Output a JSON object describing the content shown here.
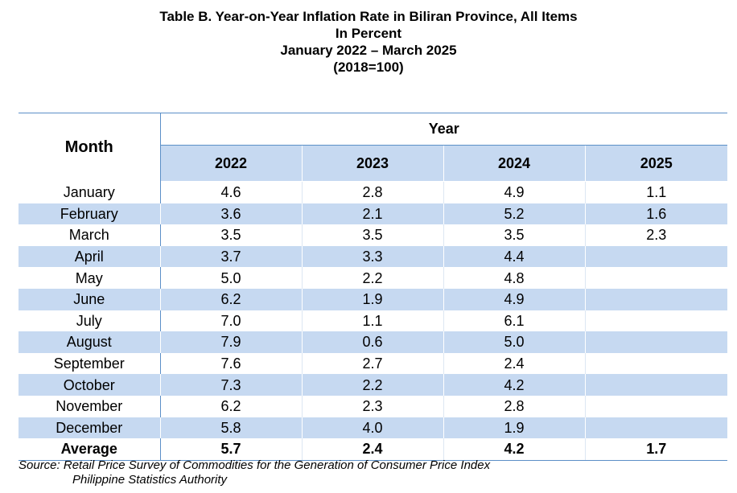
{
  "title": {
    "line1": "Table B. Year-on-Year Inflation Rate in Biliran Province, All Items",
    "line2": "In Percent",
    "line3": "January 2022 – March 2025",
    "line4": "(2018=100)"
  },
  "table": {
    "month_header": "Month",
    "year_header": "Year",
    "years": [
      "2022",
      "2023",
      "2024",
      "2025"
    ],
    "rows": [
      {
        "month": "January",
        "values": [
          "4.6",
          "2.8",
          "4.9",
          "1.1"
        ]
      },
      {
        "month": "February",
        "values": [
          "3.6",
          "2.1",
          "5.2",
          "1.6"
        ]
      },
      {
        "month": "March",
        "values": [
          "3.5",
          "3.5",
          "3.5",
          "2.3"
        ]
      },
      {
        "month": "April",
        "values": [
          "3.7",
          "3.3",
          "4.4",
          ""
        ]
      },
      {
        "month": "May",
        "values": [
          "5.0",
          "2.2",
          "4.8",
          ""
        ]
      },
      {
        "month": "June",
        "values": [
          "6.2",
          "1.9",
          "4.9",
          ""
        ]
      },
      {
        "month": "July",
        "values": [
          "7.0",
          "1.1",
          "6.1",
          ""
        ]
      },
      {
        "month": "August",
        "values": [
          "7.9",
          "0.6",
          "5.0",
          ""
        ]
      },
      {
        "month": "September",
        "values": [
          "7.6",
          "2.7",
          "2.4",
          ""
        ]
      },
      {
        "month": "October",
        "values": [
          "7.3",
          "2.2",
          "4.2",
          ""
        ]
      },
      {
        "month": "November",
        "values": [
          "6.2",
          "2.3",
          "2.8",
          ""
        ]
      },
      {
        "month": "December",
        "values": [
          "5.8",
          "4.0",
          "1.9",
          ""
        ]
      }
    ],
    "average": {
      "label": "Average",
      "values": [
        "5.7",
        "2.4",
        "4.2",
        "1.7"
      ]
    }
  },
  "source": {
    "line1": "Source: Retail Price Survey of Commodities for the Generation of Consumer Price Index",
    "line2": "Philippine Statistics Authority"
  },
  "colors": {
    "header_fill": "#c6d9f1",
    "stripe_fill": "#c6d9f1",
    "rule": "#5b8fc7"
  }
}
